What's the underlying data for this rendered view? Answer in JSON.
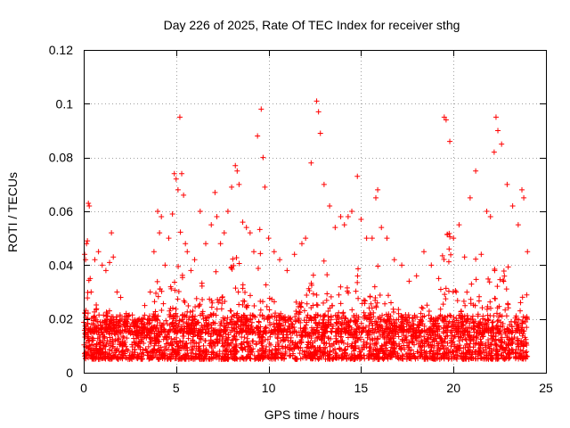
{
  "chart_data": {
    "type": "scatter",
    "title": "Day 226 of 2025, Rate Of TEC Index for receiver sthg",
    "xlabel": "GPS time / hours",
    "ylabel": "ROTI / TECUs",
    "xlim": [
      0,
      25
    ],
    "ylim": [
      0,
      0.12
    ],
    "xticks": [
      0,
      5,
      10,
      15,
      20,
      25
    ],
    "xtick_labels": [
      "0",
      "5",
      "10",
      "15",
      "20",
      "25"
    ],
    "yticks": [
      0,
      0.02,
      0.04,
      0.06,
      0.08,
      0.1,
      0.12
    ],
    "ytick_labels": [
      "0",
      "0.02",
      "0.04",
      "0.06",
      "0.08",
      "0.1",
      "0.12"
    ],
    "grid": true,
    "marker": "plus",
    "color": "#ff0000",
    "series": [
      {
        "name": "ROTI",
        "x": [
          0.05,
          0.1,
          0.15,
          0.2,
          0.25,
          0.3,
          0.35,
          0.4,
          0.6,
          0.8,
          1.0,
          1.2,
          1.4,
          1.5,
          1.6,
          1.8,
          2.0,
          2.3,
          2.6,
          3.0,
          3.3,
          3.6,
          3.8,
          4.0,
          4.1,
          4.2,
          4.4,
          4.6,
          4.8,
          4.9,
          5.0,
          5.1,
          5.2,
          5.3,
          5.4,
          5.5,
          5.6,
          5.8,
          6.0,
          6.3,
          6.6,
          6.9,
          7.1,
          7.2,
          7.4,
          7.6,
          7.8,
          8.0,
          8.2,
          8.3,
          8.4,
          8.6,
          8.8,
          9.0,
          9.2,
          9.4,
          9.6,
          9.7,
          9.8,
          10.0,
          10.3,
          10.6,
          11.0,
          11.4,
          11.8,
          12.0,
          12.3,
          12.6,
          12.7,
          12.8,
          13.0,
          13.3,
          13.6,
          13.9,
          14.1,
          14.3,
          14.5,
          14.8,
          15.0,
          15.3,
          15.6,
          15.8,
          15.9,
          16.1,
          16.4,
          16.8,
          17.2,
          17.6,
          18.0,
          18.4,
          18.8,
          19.2,
          19.5,
          19.6,
          19.8,
          20.0,
          20.3,
          20.6,
          20.9,
          21.2,
          21.5,
          21.8,
          22.0,
          22.2,
          22.3,
          22.4,
          22.6,
          22.9,
          23.2,
          23.5,
          23.7,
          23.8,
          24.0
        ],
        "y": [
          0.044,
          0.042,
          0.048,
          0.049,
          0.063,
          0.062,
          0.035,
          0.03,
          0.042,
          0.045,
          0.04,
          0.038,
          0.041,
          0.052,
          0.043,
          0.03,
          0.028,
          0.022,
          0.018,
          0.02,
          0.025,
          0.03,
          0.045,
          0.06,
          0.052,
          0.058,
          0.04,
          0.05,
          0.059,
          0.074,
          0.072,
          0.068,
          0.095,
          0.074,
          0.066,
          0.048,
          0.045,
          0.038,
          0.042,
          0.06,
          0.048,
          0.055,
          0.067,
          0.058,
          0.048,
          0.052,
          0.06,
          0.069,
          0.077,
          0.075,
          0.07,
          0.056,
          0.054,
          0.052,
          0.045,
          0.088,
          0.098,
          0.08,
          0.069,
          0.05,
          0.045,
          0.042,
          0.038,
          0.044,
          0.048,
          0.05,
          0.078,
          0.101,
          0.097,
          0.089,
          0.07,
          0.062,
          0.054,
          0.058,
          0.055,
          0.058,
          0.06,
          0.073,
          0.057,
          0.05,
          0.05,
          0.065,
          0.068,
          0.054,
          0.05,
          0.042,
          0.04,
          0.034,
          0.036,
          0.045,
          0.04,
          0.035,
          0.095,
          0.094,
          0.086,
          0.05,
          0.055,
          0.043,
          0.065,
          0.075,
          0.044,
          0.06,
          0.058,
          0.082,
          0.095,
          0.09,
          0.085,
          0.07,
          0.062,
          0.055,
          0.068,
          0.065,
          0.045
        ]
      }
    ],
    "baseline_level": [
      0.005,
      0.02
    ],
    "baseline_note": ""
  }
}
